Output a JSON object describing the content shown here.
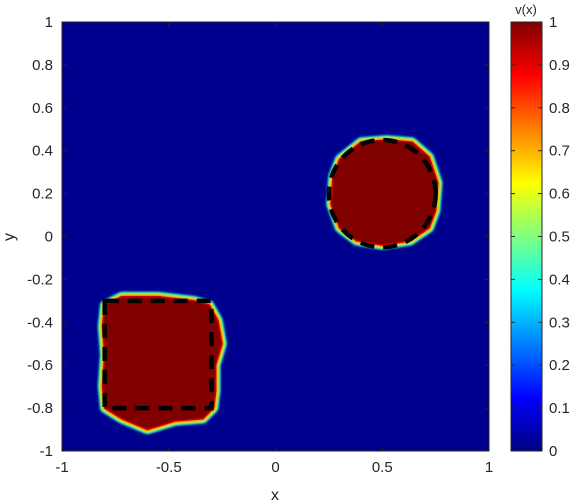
{
  "chart_data": {
    "type": "heatmap",
    "title": "",
    "xlabel": "x",
    "ylabel": "y",
    "xlim": [
      -1,
      1
    ],
    "ylim": [
      -1,
      1
    ],
    "x_ticks": [
      "-1",
      "-0.5",
      "0",
      "0.5",
      "1"
    ],
    "y_ticks": [
      "1",
      "0.8",
      "0.6",
      "0.4",
      "0.2",
      "0",
      "-0.2",
      "-0.4",
      "-0.6",
      "-0.8",
      "-1"
    ],
    "colormap": "jet",
    "colorbar": {
      "label": "v(x)",
      "range": [
        0,
        1
      ],
      "ticks": [
        "1",
        "0.9",
        "0.8",
        "0.7",
        "0.6",
        "0.5",
        "0.4",
        "0.3",
        "0.2",
        "0.1",
        "0"
      ]
    },
    "background_value": 0,
    "regions": [
      {
        "shape": "rounded-square",
        "value": 1,
        "outline": [
          [
            -0.8,
            -0.32
          ],
          [
            -0.72,
            -0.28
          ],
          [
            -0.55,
            -0.28
          ],
          [
            -0.38,
            -0.3
          ],
          [
            -0.31,
            -0.32
          ],
          [
            -0.27,
            -0.39
          ],
          [
            -0.25,
            -0.5
          ],
          [
            -0.28,
            -0.6
          ],
          [
            -0.28,
            -0.72
          ],
          [
            -0.29,
            -0.8
          ],
          [
            -0.34,
            -0.85
          ],
          [
            -0.47,
            -0.86
          ],
          [
            -0.6,
            -0.9
          ],
          [
            -0.72,
            -0.85
          ],
          [
            -0.8,
            -0.8
          ],
          [
            -0.81,
            -0.7
          ],
          [
            -0.8,
            -0.55
          ],
          [
            -0.81,
            -0.42
          ]
        ],
        "reference_outline": {
          "style": "dashed",
          "x": [
            -0.8,
            -0.3
          ],
          "y": [
            -0.8,
            -0.3
          ]
        }
      },
      {
        "shape": "circle",
        "value": 1,
        "outline": [
          [
            0.3,
            0.36
          ],
          [
            0.4,
            0.44
          ],
          [
            0.52,
            0.45
          ],
          [
            0.64,
            0.44
          ],
          [
            0.72,
            0.37
          ],
          [
            0.76,
            0.25
          ],
          [
            0.75,
            0.12
          ],
          [
            0.72,
            0.04
          ],
          [
            0.63,
            -0.02
          ],
          [
            0.5,
            -0.04
          ],
          [
            0.38,
            -0.02
          ],
          [
            0.3,
            0.04
          ],
          [
            0.26,
            0.15
          ],
          [
            0.27,
            0.28
          ]
        ],
        "reference_outline": {
          "style": "dashed",
          "center": [
            0.5,
            0.2
          ],
          "radius": 0.25
        }
      }
    ]
  }
}
